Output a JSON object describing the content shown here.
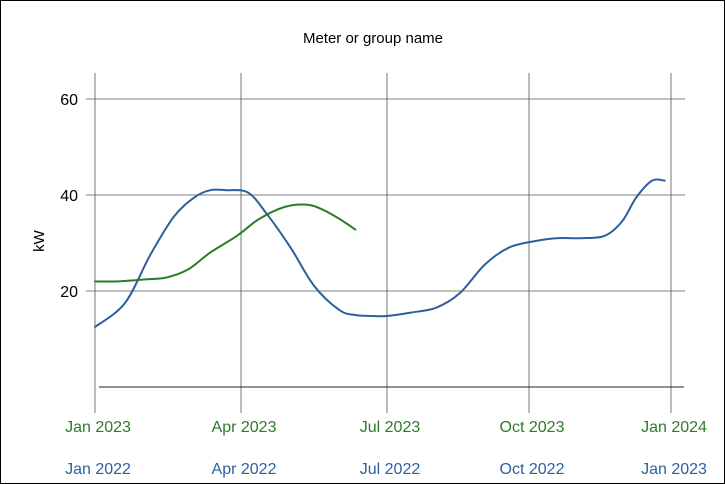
{
  "chart_data": {
    "type": "line",
    "title": "Meter or group name",
    "ylabel": "kW",
    "ylim": [
      0,
      65
    ],
    "y_ticks": [
      "20",
      "40",
      "60"
    ],
    "y_tick_values": [
      20,
      40,
      60
    ],
    "grid": true,
    "x_axes": [
      {
        "position": "bottom",
        "color": "#2a7d2a",
        "tick_labels": [
          "Jan 2023",
          "Apr 2023",
          "Jul 2023",
          "Oct 2023",
          "Jan 2024"
        ]
      },
      {
        "position": "bottom-second-row",
        "color": "#2c5f9e",
        "tick_labels": [
          "Jan 2022",
          "Apr 2022",
          "Jul 2022",
          "Oct 2022",
          "Jan 2023"
        ]
      }
    ],
    "series": [
      {
        "axis": "Jan 2022 - Jan 2023",
        "color": "#2c5f9e",
        "x": [
          "2022-01-01",
          "2022-01-20",
          "2022-02-05",
          "2022-02-20",
          "2022-03-05",
          "2022-03-15",
          "2022-03-25",
          "2022-04-08",
          "2022-04-20",
          "2022-05-05",
          "2022-05-20",
          "2022-06-05",
          "2022-06-15",
          "2022-06-25",
          "2022-07-05",
          "2022-07-20",
          "2022-08-05",
          "2022-08-20",
          "2022-09-05",
          "2022-09-20",
          "2022-10-05",
          "2022-10-20",
          "2022-11-05",
          "2022-11-20",
          "2022-12-01",
          "2022-12-10",
          "2022-12-20",
          "2022-12-28"
        ],
        "values": [
          12.5,
          17.5,
          27.5,
          35.5,
          39.5,
          41.0,
          41.0,
          40.5,
          36.0,
          29.0,
          21.0,
          16.0,
          15.0,
          14.8,
          14.8,
          15.5,
          16.5,
          19.5,
          25.5,
          29.0,
          30.3,
          31.0,
          31.0,
          31.5,
          34.5,
          39.5,
          43.0,
          43.0
        ]
      },
      {
        "axis": "Jan 2023 - Jan 2024",
        "color": "#2a7d2a",
        "x": [
          "2023-01-01",
          "2023-01-15",
          "2023-02-01",
          "2023-02-15",
          "2023-03-01",
          "2023-03-15",
          "2023-04-01",
          "2023-04-15",
          "2023-05-01",
          "2023-05-15",
          "2023-05-25",
          "2023-06-05",
          "2023-06-15"
        ],
        "values": [
          22.0,
          22.0,
          22.4,
          22.8,
          24.5,
          28.0,
          31.5,
          35.0,
          37.5,
          38.0,
          37.0,
          35.0,
          32.8
        ]
      }
    ]
  }
}
